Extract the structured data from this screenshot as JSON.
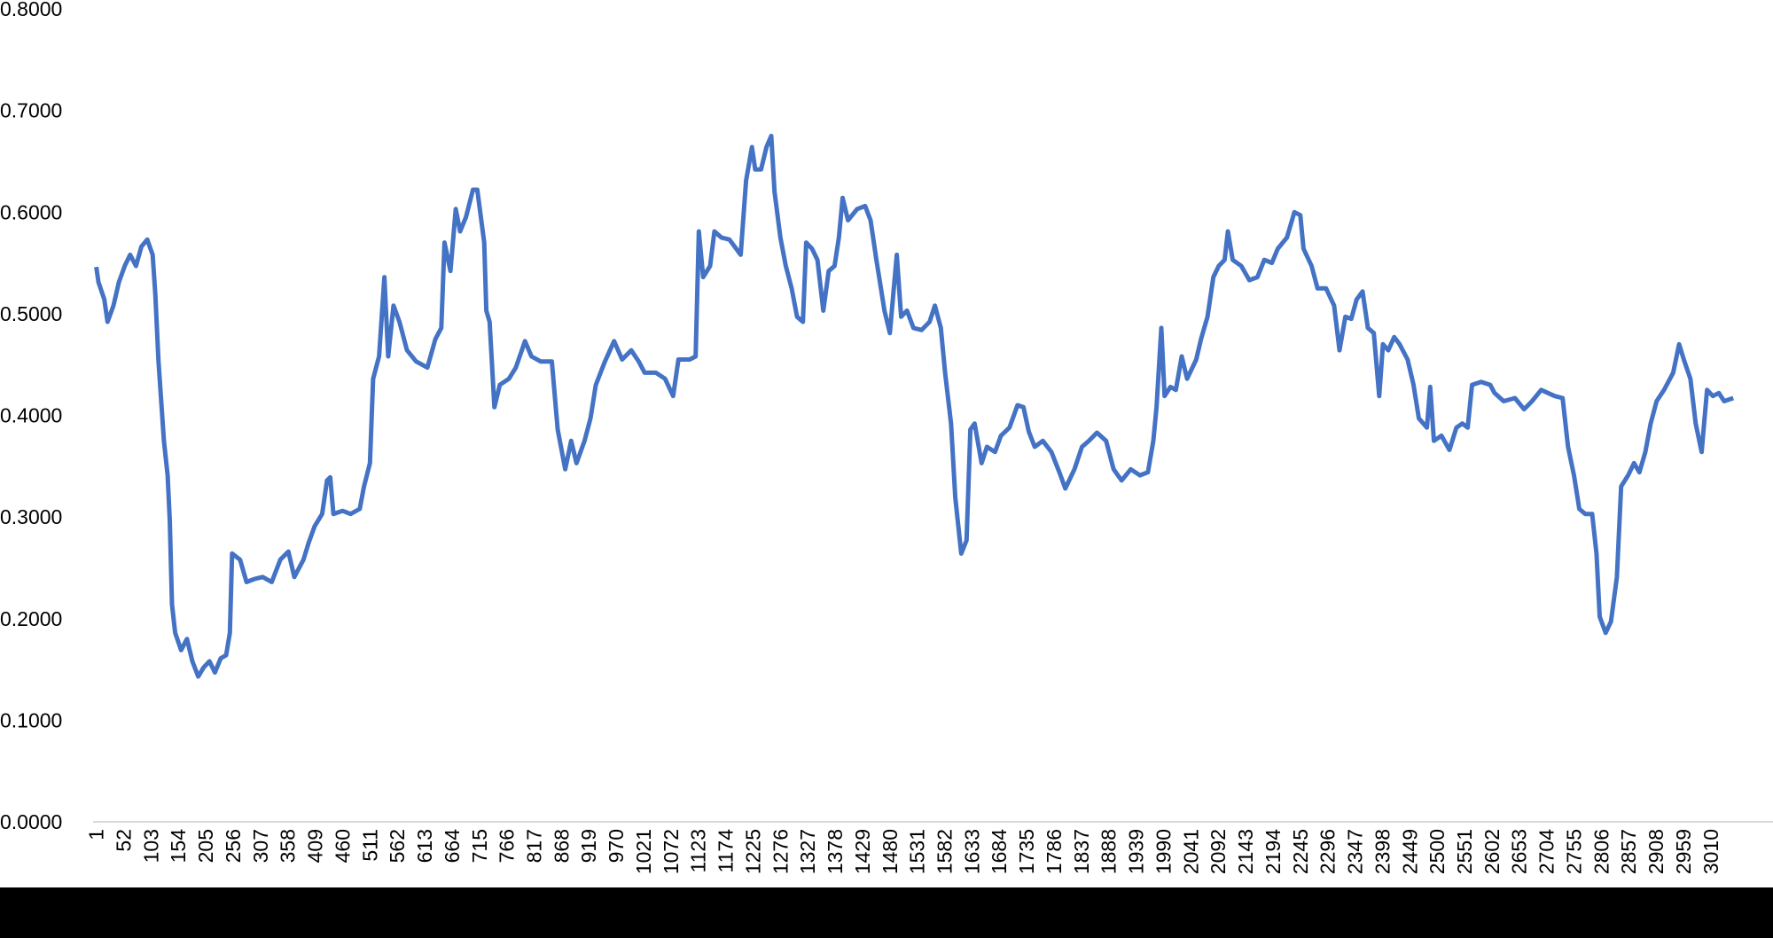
{
  "chart_data": {
    "type": "line",
    "color": "#4472c4",
    "x": [
      1,
      5,
      16,
      22,
      33,
      43,
      54,
      64,
      75,
      85,
      96,
      106,
      111,
      117,
      127,
      134,
      138,
      142,
      148,
      159,
      170,
      180,
      191,
      201,
      212,
      222,
      233,
      243,
      250,
      254,
      269,
      281,
      296,
      311,
      328,
      344,
      359,
      370,
      387,
      397,
      408,
      422,
      431,
      437,
      443,
      460,
      475,
      492,
      500,
      511,
      517,
      528,
      538,
      545,
      555,
      566,
      580,
      597,
      618,
      633,
      644,
      650,
      661,
      671,
      679,
      690,
      703,
      711,
      724,
      728,
      734,
      743,
      753,
      770,
      783,
      800,
      812,
      829,
      850,
      861,
      875,
      886,
      896,
      911,
      922,
      932,
      949,
      966,
      981,
      998,
      1012,
      1023,
      1044,
      1061,
      1076,
      1086,
      1107,
      1118,
      1124,
      1132,
      1145,
      1153,
      1166,
      1181,
      1202,
      1212,
      1223,
      1229,
      1240,
      1250,
      1259,
      1265,
      1276,
      1286,
      1297,
      1307,
      1318,
      1324,
      1335,
      1345,
      1356,
      1366,
      1377,
      1385,
      1392,
      1402,
      1419,
      1434,
      1444,
      1455,
      1470,
      1480,
      1493,
      1501,
      1512,
      1524,
      1539,
      1554,
      1564,
      1575,
      1583,
      1594,
      1602,
      1613,
      1623,
      1630,
      1638,
      1651,
      1661,
      1676,
      1687,
      1703,
      1718,
      1729,
      1739,
      1750,
      1765,
      1781,
      1796,
      1807,
      1824,
      1838,
      1851,
      1866,
      1883,
      1897,
      1912,
      1929,
      1946,
      1961,
      1971,
      1977,
      1986,
      1992,
      2003,
      2013,
      2024,
      2034,
      2051,
      2060,
      2072,
      2083,
      2093,
      2104,
      2110,
      2119,
      2135,
      2150,
      2165,
      2178,
      2192,
      2203,
      2220,
      2234,
      2245,
      2251,
      2266,
      2277,
      2293,
      2308,
      2318,
      2329,
      2340,
      2350,
      2361,
      2371,
      2382,
      2392,
      2399,
      2409,
      2420,
      2430,
      2445,
      2456,
      2466,
      2481,
      2487,
      2494,
      2508,
      2523,
      2536,
      2547,
      2557,
      2565,
      2582,
      2599,
      2607,
      2624,
      2645,
      2662,
      2677,
      2694,
      2719,
      2734,
      2744,
      2755,
      2765,
      2776,
      2789,
      2797,
      2803,
      2814,
      2824,
      2835,
      2843,
      2856,
      2867,
      2877,
      2888,
      2898,
      2909,
      2923,
      2940,
      2951,
      2961,
      2972,
      2982,
      2993,
      3003,
      3014,
      3025,
      3035,
      3052
    ],
    "values": [
      0.546,
      0.531,
      0.514,
      0.492,
      0.508,
      0.531,
      0.547,
      0.558,
      0.547,
      0.566,
      0.573,
      0.558,
      0.519,
      0.453,
      0.375,
      0.341,
      0.297,
      0.214,
      0.186,
      0.169,
      0.18,
      0.158,
      0.143,
      0.152,
      0.158,
      0.147,
      0.161,
      0.164,
      0.186,
      0.264,
      0.258,
      0.236,
      0.239,
      0.241,
      0.236,
      0.258,
      0.266,
      0.241,
      0.258,
      0.275,
      0.291,
      0.303,
      0.336,
      0.339,
      0.303,
      0.306,
      0.303,
      0.308,
      0.33,
      0.353,
      0.436,
      0.458,
      0.536,
      0.458,
      0.508,
      0.492,
      0.464,
      0.453,
      0.447,
      0.475,
      0.486,
      0.57,
      0.542,
      0.603,
      0.581,
      0.595,
      0.622,
      0.622,
      0.57,
      0.503,
      0.492,
      0.408,
      0.43,
      0.436,
      0.447,
      0.473,
      0.458,
      0.453,
      0.453,
      0.386,
      0.347,
      0.375,
      0.353,
      0.375,
      0.397,
      0.43,
      0.453,
      0.473,
      0.455,
      0.464,
      0.453,
      0.442,
      0.442,
      0.436,
      0.419,
      0.455,
      0.455,
      0.458,
      0.581,
      0.536,
      0.547,
      0.581,
      0.575,
      0.573,
      0.558,
      0.631,
      0.664,
      0.642,
      0.642,
      0.664,
      0.675,
      0.62,
      0.575,
      0.547,
      0.525,
      0.497,
      0.492,
      0.57,
      0.564,
      0.553,
      0.503,
      0.542,
      0.547,
      0.575,
      0.614,
      0.592,
      0.603,
      0.606,
      0.592,
      0.553,
      0.503,
      0.481,
      0.558,
      0.497,
      0.503,
      0.486,
      0.484,
      0.492,
      0.508,
      0.486,
      0.442,
      0.392,
      0.319,
      0.264,
      0.277,
      0.386,
      0.392,
      0.353,
      0.369,
      0.364,
      0.38,
      0.388,
      0.41,
      0.408,
      0.384,
      0.369,
      0.375,
      0.364,
      0.344,
      0.328,
      0.347,
      0.369,
      0.375,
      0.383,
      0.375,
      0.347,
      0.336,
      0.347,
      0.341,
      0.344,
      0.375,
      0.408,
      0.486,
      0.419,
      0.428,
      0.425,
      0.458,
      0.436,
      0.455,
      0.475,
      0.497,
      0.536,
      0.547,
      0.553,
      0.581,
      0.553,
      0.547,
      0.533,
      0.536,
      0.553,
      0.55,
      0.564,
      0.575,
      0.6,
      0.597,
      0.564,
      0.547,
      0.525,
      0.525,
      0.508,
      0.464,
      0.497,
      0.495,
      0.514,
      0.522,
      0.486,
      0.481,
      0.419,
      0.47,
      0.464,
      0.477,
      0.47,
      0.455,
      0.43,
      0.397,
      0.388,
      0.428,
      0.375,
      0.38,
      0.366,
      0.388,
      0.392,
      0.388,
      0.43,
      0.433,
      0.43,
      0.422,
      0.414,
      0.417,
      0.406,
      0.414,
      0.425,
      0.419,
      0.417,
      0.369,
      0.341,
      0.308,
      0.303,
      0.303,
      0.264,
      0.202,
      0.186,
      0.197,
      0.241,
      0.33,
      0.341,
      0.353,
      0.344,
      0.364,
      0.392,
      0.414,
      0.425,
      0.442,
      0.47,
      0.453,
      0.436,
      0.392,
      0.364,
      0.425,
      0.419,
      0.422,
      0.414,
      0.417
    ],
    "xlim": [
      -5,
      3126
    ],
    "xticks": [
      1,
      52,
      103,
      154,
      205,
      256,
      307,
      358,
      409,
      460,
      511,
      562,
      613,
      664,
      715,
      766,
      817,
      868,
      919,
      970,
      1021,
      1072,
      1123,
      1174,
      1225,
      1276,
      1327,
      1378,
      1429,
      1480,
      1531,
      1582,
      1633,
      1684,
      1735,
      1786,
      1837,
      1888,
      1939,
      1990,
      2041,
      2092,
      2143,
      2194,
      2245,
      2296,
      2347,
      2398,
      2449,
      2500,
      2551,
      2602,
      2653,
      2704,
      2755,
      2806,
      2857,
      2908,
      2959,
      3010
    ],
    "ylim": [
      0,
      0.8
    ],
    "yticks": [
      {
        "value": 0,
        "label": "0.0000"
      },
      {
        "value": 0.1,
        "label": "0.1000"
      },
      {
        "value": 0.2,
        "label": "0.2000"
      },
      {
        "value": 0.3,
        "label": "0.3000"
      },
      {
        "value": 0.4,
        "label": "0.4000"
      },
      {
        "value": 0.5,
        "label": "0.5000"
      },
      {
        "value": 0.6,
        "label": "0.6000"
      },
      {
        "value": 0.7,
        "label": "0.7000"
      },
      {
        "value": 0.8,
        "label": "0.8000"
      }
    ]
  }
}
